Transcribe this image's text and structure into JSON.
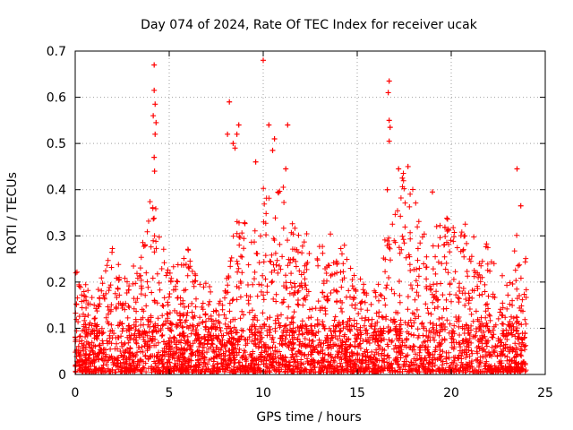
{
  "chart_data": {
    "type": "scatter",
    "title": "Day 074 of 2024, Rate Of TEC Index for receiver ucak",
    "xlabel": "GPS time / hours",
    "ylabel": "ROTI / TECUs",
    "xlim": [
      0,
      25
    ],
    "ylim": [
      0,
      0.7
    ],
    "xticks": [
      "0",
      "5",
      "10",
      "15",
      "20",
      "25"
    ],
    "yticks": [
      "0",
      "0.1",
      "0.2",
      "0.3",
      "0.4",
      "0.5",
      "0.6",
      "0.7"
    ],
    "grid": true,
    "marker": "+",
    "color": "#ff0000",
    "series": [
      {
        "name": "ROTI",
        "envelope_hours": [
          0,
          0.5,
          1,
          1.5,
          2,
          2.5,
          3,
          3.5,
          4,
          4.5,
          5,
          5.5,
          6,
          6.5,
          7,
          7.5,
          8,
          8.5,
          9,
          9.5,
          10,
          10.5,
          11,
          11.5,
          12,
          12.5,
          13,
          13.5,
          14,
          14.5,
          15,
          15.5,
          16,
          16.5,
          17,
          17.5,
          18,
          18.5,
          19,
          19.5,
          20,
          20.5,
          21,
          21.5,
          22,
          22.5,
          23,
          23.5,
          24
        ],
        "envelope_roti": [
          0.23,
          0.2,
          0.17,
          0.22,
          0.3,
          0.2,
          0.23,
          0.27,
          0.4,
          0.32,
          0.22,
          0.25,
          0.27,
          0.2,
          0.2,
          0.15,
          0.19,
          0.33,
          0.38,
          0.3,
          0.42,
          0.38,
          0.42,
          0.32,
          0.34,
          0.3,
          0.28,
          0.32,
          0.27,
          0.28,
          0.22,
          0.19,
          0.18,
          0.3,
          0.38,
          0.45,
          0.42,
          0.32,
          0.3,
          0.35,
          0.33,
          0.3,
          0.35,
          0.28,
          0.29,
          0.22,
          0.2,
          0.3,
          0.25
        ],
        "outliers": [
          {
            "x": 4.2,
            "y": 0.67
          },
          {
            "x": 4.2,
            "y": 0.615
          },
          {
            "x": 4.25,
            "y": 0.585
          },
          {
            "x": 4.15,
            "y": 0.56
          },
          {
            "x": 4.3,
            "y": 0.545
          },
          {
            "x": 4.25,
            "y": 0.52
          },
          {
            "x": 4.2,
            "y": 0.47
          },
          {
            "x": 4.22,
            "y": 0.44
          },
          {
            "x": 8.2,
            "y": 0.59
          },
          {
            "x": 8.1,
            "y": 0.52
          },
          {
            "x": 8.4,
            "y": 0.5
          },
          {
            "x": 8.7,
            "y": 0.54
          },
          {
            "x": 8.6,
            "y": 0.52
          },
          {
            "x": 8.5,
            "y": 0.49
          },
          {
            "x": 9.6,
            "y": 0.46
          },
          {
            "x": 10,
            "y": 0.68
          },
          {
            "x": 10.3,
            "y": 0.54
          },
          {
            "x": 10.6,
            "y": 0.51
          },
          {
            "x": 10.5,
            "y": 0.485
          },
          {
            "x": 11.3,
            "y": 0.54
          },
          {
            "x": 11.2,
            "y": 0.445
          },
          {
            "x": 16.7,
            "y": 0.635
          },
          {
            "x": 16.65,
            "y": 0.61
          },
          {
            "x": 16.7,
            "y": 0.55
          },
          {
            "x": 16.75,
            "y": 0.535
          },
          {
            "x": 16.7,
            "y": 0.505
          },
          {
            "x": 16.6,
            "y": 0.4
          },
          {
            "x": 17.2,
            "y": 0.445
          },
          {
            "x": 17.4,
            "y": 0.425
          },
          {
            "x": 17.7,
            "y": 0.45
          },
          {
            "x": 19.0,
            "y": 0.395
          },
          {
            "x": 23.5,
            "y": 0.445
          },
          {
            "x": 23.7,
            "y": 0.365
          }
        ]
      }
    ]
  }
}
